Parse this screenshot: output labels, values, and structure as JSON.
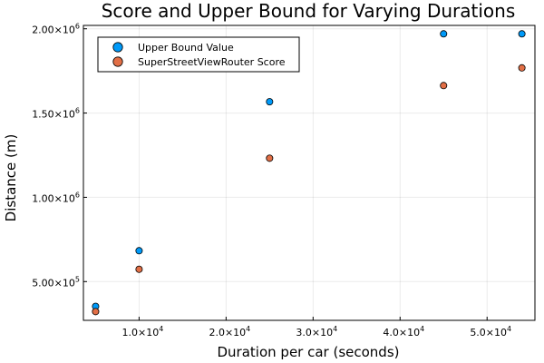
{
  "chart_data": {
    "type": "scatter",
    "title": "Score and Upper Bound for Varying Durations",
    "xlabel": "Duration per car (seconds)",
    "ylabel": "Distance (m)",
    "xlim": [
      3600,
      55500
    ],
    "ylim": [
      270000,
      2020000
    ],
    "grid": true,
    "legend_position": "top-left",
    "x_ticks": [
      {
        "value": 10000,
        "mantissa": "1.0",
        "exp": "4"
      },
      {
        "value": 20000,
        "mantissa": "2.0",
        "exp": "4"
      },
      {
        "value": 30000,
        "mantissa": "3.0",
        "exp": "4"
      },
      {
        "value": 40000,
        "mantissa": "4.0",
        "exp": "4"
      },
      {
        "value": 50000,
        "mantissa": "5.0",
        "exp": "4"
      }
    ],
    "y_ticks": [
      {
        "value": 500000,
        "mantissa": "5.00",
        "exp": "5"
      },
      {
        "value": 1000000,
        "mantissa": "1.00",
        "exp": "6"
      },
      {
        "value": 1500000,
        "mantissa": "1.50",
        "exp": "6"
      },
      {
        "value": 2000000,
        "mantissa": "2.00",
        "exp": "6"
      }
    ],
    "tick_times_sign": "×10",
    "x": [
      5000,
      10000,
      25000,
      45000,
      54000
    ],
    "series": [
      {
        "name": "Upper Bound Value",
        "color": "#009af9",
        "values": [
          353000,
          683000,
          1567000,
          1970000,
          1970000
        ]
      },
      {
        "name": "SuperStreetViewRouter Score",
        "color": "#e26f46",
        "values": [
          322000,
          573000,
          1232000,
          1663000,
          1768000
        ]
      }
    ]
  }
}
